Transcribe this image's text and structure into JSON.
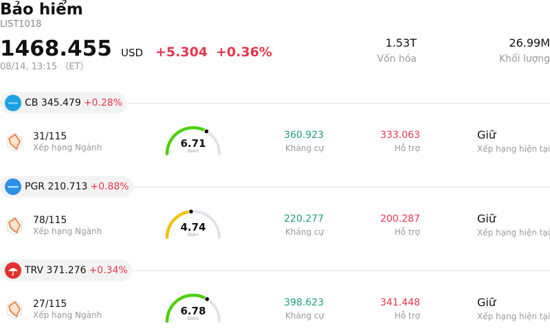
{
  "header": {
    "title": "Bảo hiểm",
    "code": "LIST1018",
    "price": "1468.455",
    "currency": "USD",
    "change": "+5.304",
    "change_pct": "+0.36%",
    "time": "08/14, 13:15 （ET）",
    "market_cap_value": "1.53T",
    "market_cap_label": "Vốn hóa",
    "volume_value": "26.99M",
    "volume_label": "Khối lượng"
  },
  "colors": {
    "up": "#e8344b",
    "resistance": "#1b9c7e",
    "gauge_green": "#4cd10d",
    "gauge_yellow": "#f5bf0f",
    "gauge_track": "#e1e1ec"
  },
  "stocks": [
    {
      "symbol": "CB",
      "price": "345.479",
      "change_pct": "+0.28%",
      "logo_icon": "chubb-logo-icon",
      "rank": "31/115",
      "rank_label": "Xếp hạng Ngành",
      "score": "6.71",
      "score_value": 6.71,
      "score_label": "Điểm",
      "resistance": "360.923",
      "resistance_label": "Kháng cự",
      "support": "333.063",
      "support_label": "Hỗ trợ",
      "rating": "Giữ",
      "rating_label": "Xếp hạng hiện tại"
    },
    {
      "symbol": "PGR",
      "price": "210.713",
      "change_pct": "+0.88%",
      "logo_icon": "progressive-logo-icon",
      "rank": "78/115",
      "rank_label": "Xếp hạng Ngành",
      "score": "4.74",
      "score_value": 4.74,
      "score_label": "Điểm",
      "resistance": "220.277",
      "resistance_label": "Kháng cự",
      "support": "200.287",
      "support_label": "Hỗ trợ",
      "rating": "Giữ",
      "rating_label": "Xếp hạng hiện tại"
    },
    {
      "symbol": "TRV",
      "price": "371.276",
      "change_pct": "+0.34%",
      "logo_icon": "travelers-umbrella-icon",
      "rank": "27/115",
      "rank_label": "Xếp hạng Ngành",
      "score": "6.78",
      "score_value": 6.78,
      "score_label": "Điểm",
      "resistance": "398.623",
      "resistance_label": "Kháng cự",
      "support": "341.448",
      "support_label": "Hỗ trợ",
      "rating": "Giữ",
      "rating_label": "Xếp hạng hiện tại"
    }
  ]
}
